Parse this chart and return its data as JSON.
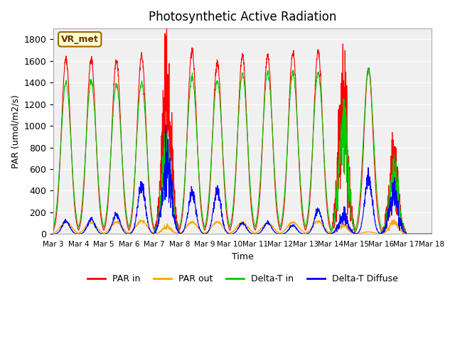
{
  "title": "Photosynthetic Active Radiation",
  "ylabel": "PAR (umol/m2/s)",
  "xlabel": "Time",
  "ylim": [
    0,
    1900
  ],
  "yticks": [
    0,
    200,
    400,
    600,
    800,
    1000,
    1200,
    1400,
    1600,
    1800
  ],
  "xtick_labels": [
    "Mar 3",
    "Mar 4",
    "Mar 5",
    "Mar 6",
    "Mar 7",
    "Mar 8",
    "Mar 9",
    "Mar 10",
    "Mar 11",
    "Mar 12",
    "Mar 13",
    "Mar 14",
    "Mar 15",
    "Mar 16",
    "Mar 17",
    "Mar 18"
  ],
  "colors": {
    "PAR_in": "#ff0000",
    "PAR_out": "#ffa500",
    "Delta_T_in": "#00cc00",
    "Delta_T_Diffuse": "#0000ff"
  },
  "legend_labels": [
    "PAR in",
    "PAR out",
    "Delta-T in",
    "Delta-T Diffuse"
  ],
  "tag_text": "VR_met",
  "tag_facecolor": "#ffffcc",
  "tag_edgecolor": "#996600",
  "background_color": "#f0f0f0",
  "grid_color": "#ffffff",
  "n_days": 15,
  "points_per_day": 144,
  "day_peaks": {
    "PAR_in": [
      1620,
      1620,
      1600,
      1650,
      1380,
      1700,
      1580,
      1650,
      1650,
      1680,
      1690,
      1260,
      1520,
      630,
      0
    ],
    "PAR_out": [
      110,
      105,
      110,
      120,
      65,
      110,
      110,
      105,
      100,
      110,
      115,
      80,
      20,
      110,
      0
    ],
    "Delta_T_in": [
      1400,
      1420,
      1380,
      1400,
      800,
      1450,
      1420,
      1480,
      1490,
      1490,
      1490,
      1020,
      1520,
      530,
      0
    ],
    "Delta_T_Diffuse": [
      120,
      135,
      175,
      450,
      620,
      380,
      390,
      100,
      105,
      80,
      220,
      160,
      520,
      340,
      0
    ],
    "cloudy": [
      false,
      false,
      false,
      false,
      true,
      false,
      false,
      false,
      false,
      false,
      false,
      true,
      false,
      true,
      false
    ]
  }
}
